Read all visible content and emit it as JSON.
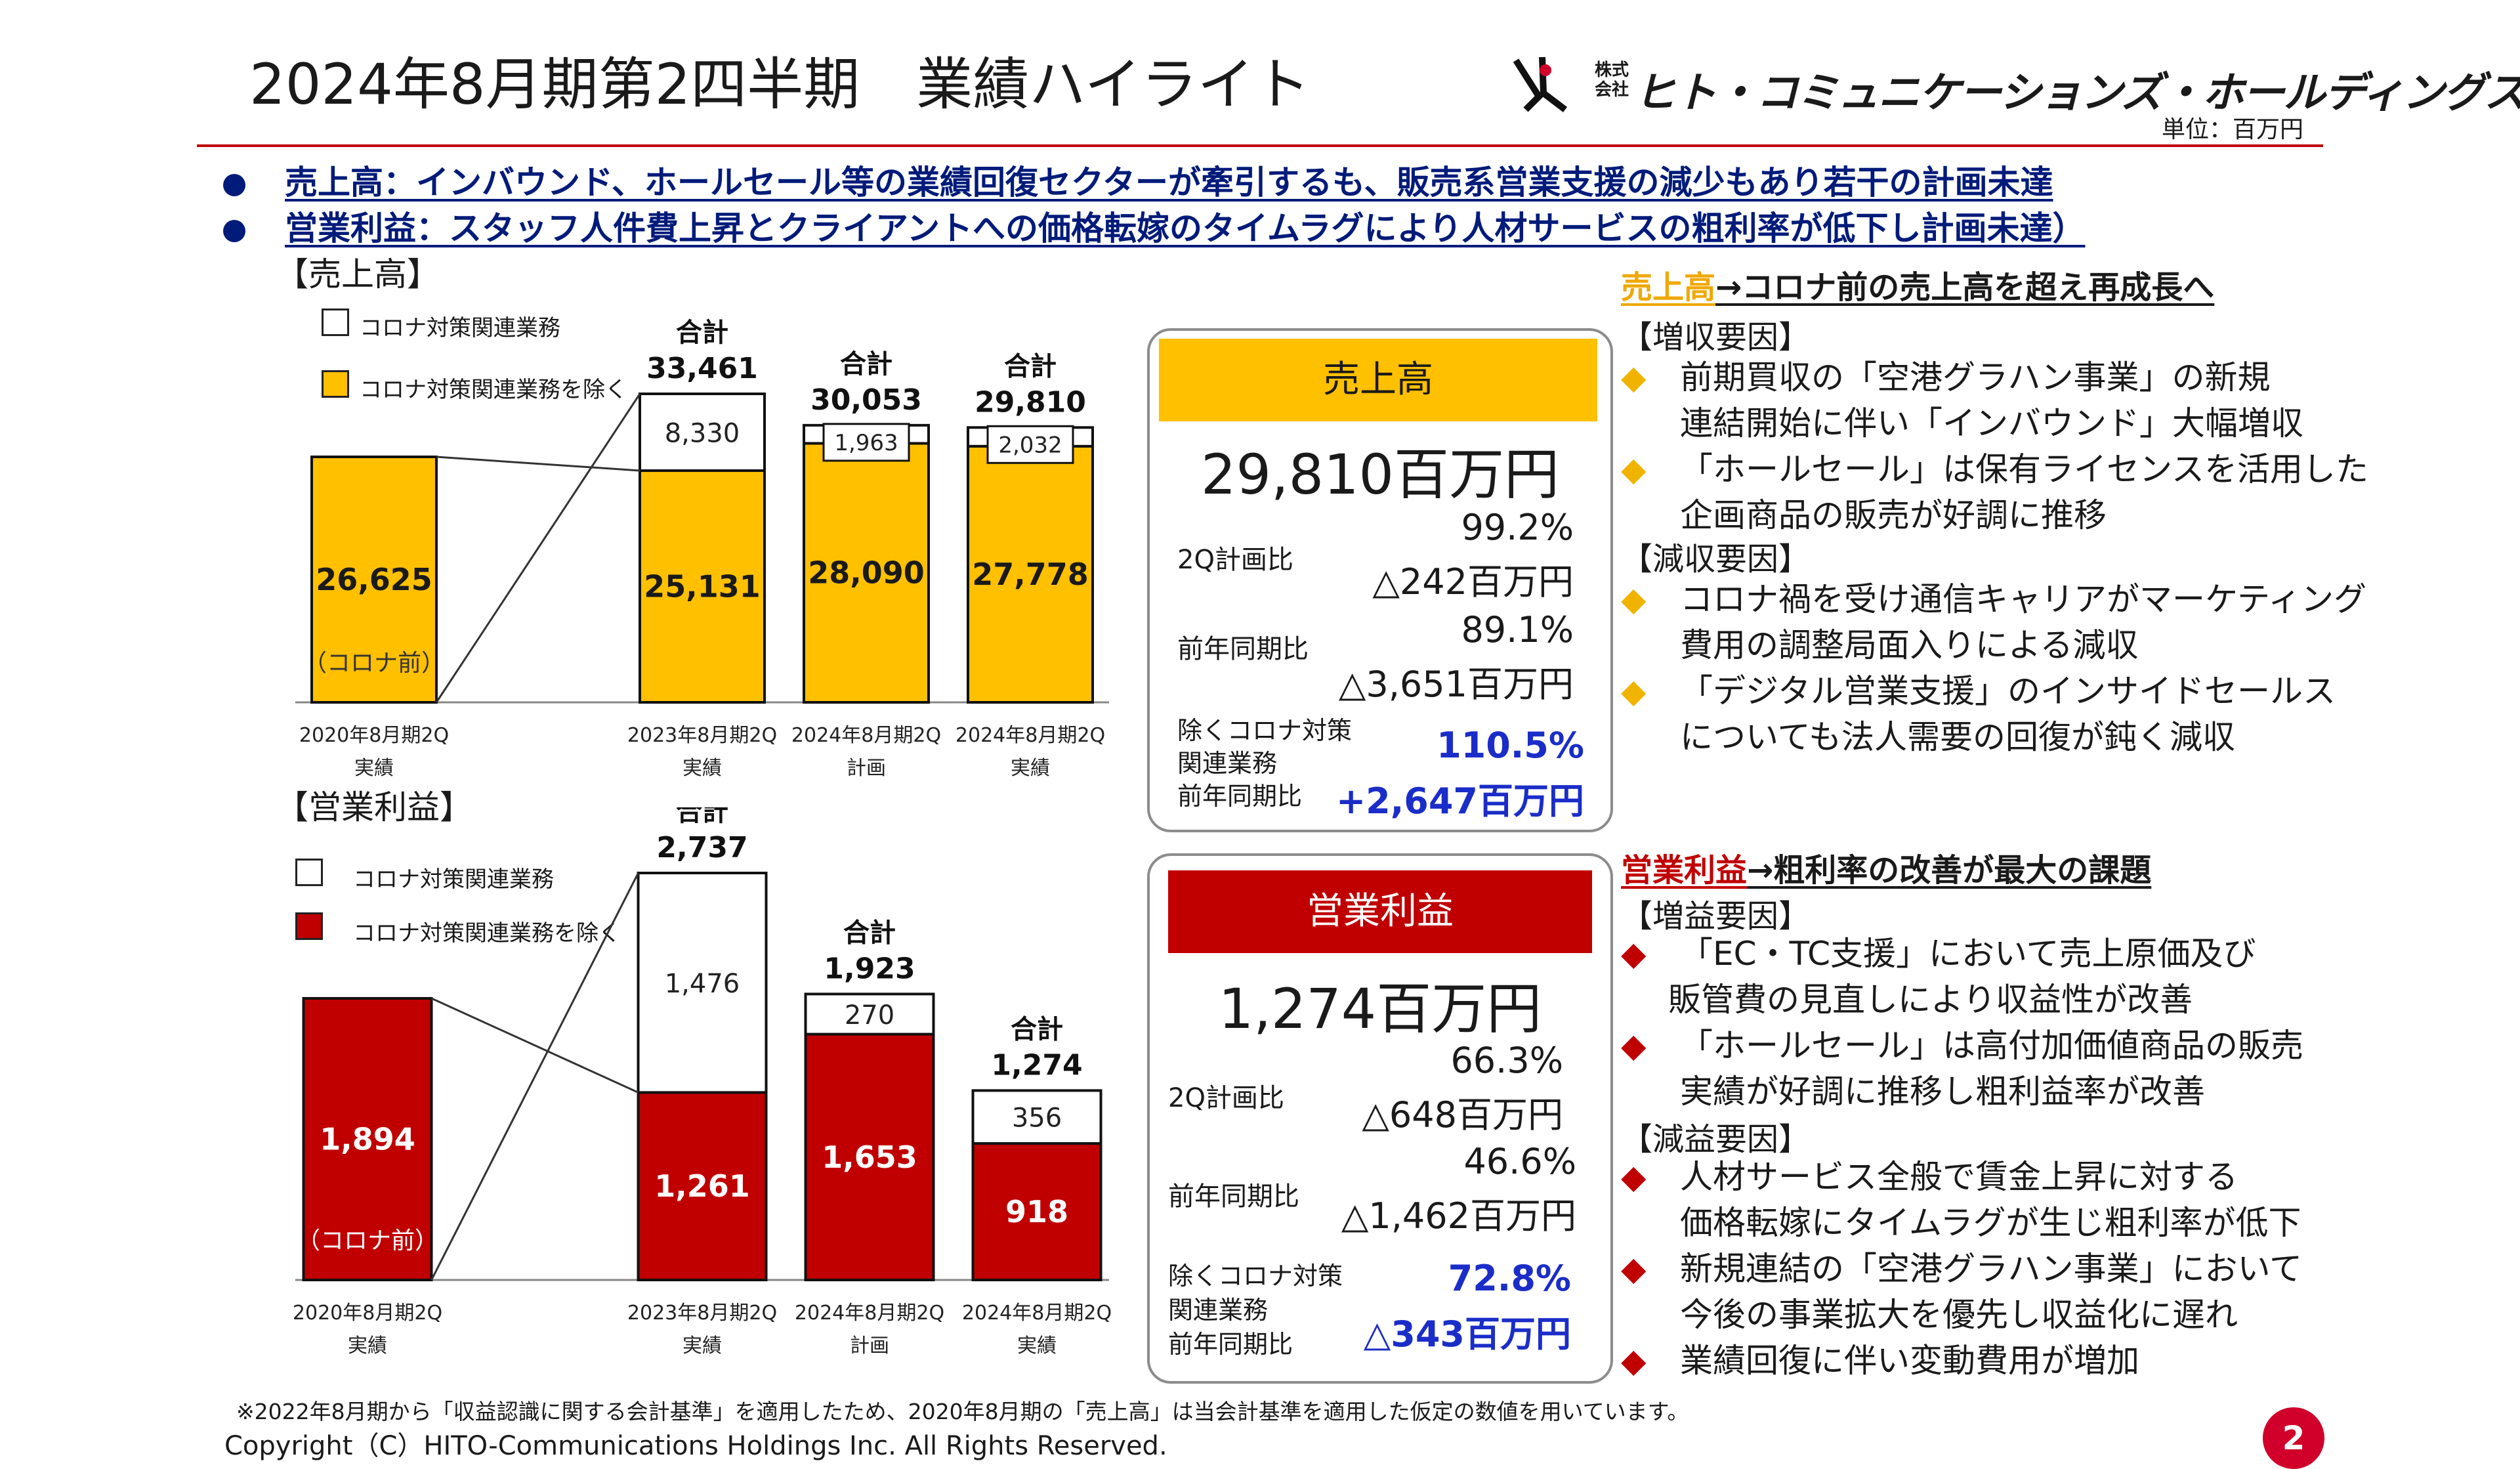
{
  "header": {
    "title": "2024年8月期第2四半期　業績ハイライト",
    "logo_small": "株式会社",
    "logo_name": "ヒト・コミュニケーションズ・ホールディングス",
    "unit": "単位：百万円"
  },
  "bullets": [
    "売上高：インバウンド、ホールセール等の業績回復セクターが牽引するも、販売系営業支援の減少もあり若干の計画未達",
    "営業利益：スタッフ人件費上昇とクライアントへの価格転嫁のタイムラグにより人材サービスの粗利率が低下し計画未達）"
  ],
  "chart_data": [
    {
      "type": "bar",
      "stacked": true,
      "title": "【売上高】",
      "legend": [
        "コロナ対策関連業務",
        "コロナ対策関連業務を除く"
      ],
      "categories": [
        [
          "2020年8月期2Q",
          "実績"
        ],
        [
          "2023年8月期2Q",
          "実績"
        ],
        [
          "2024年8月期2Q",
          "計画"
        ],
        [
          "2024年8月期2Q",
          "実績"
        ]
      ],
      "series": [
        {
          "name": "コロナ対策関連業務を除く",
          "color": "#ffc000",
          "values": [
            26625,
            25131,
            28090,
            27778
          ]
        },
        {
          "name": "コロナ対策関連業務",
          "color": "#ffffff",
          "values": [
            0,
            8330,
            1963,
            2032
          ]
        }
      ],
      "value_labels_base": [
        "26,625",
        "25,131",
        "28,090",
        "27,778"
      ],
      "value_labels_top": [
        "",
        "8,330",
        "1,963",
        "2,032"
      ],
      "totals_label": "合計",
      "totals": [
        "",
        "33,461",
        "30,053",
        "29,810"
      ],
      "pre_covid_note": "（コロナ前）",
      "ylim": [
        0,
        33461
      ]
    },
    {
      "type": "bar",
      "stacked": true,
      "title": "【営業利益】",
      "legend": [
        "コロナ対策関連業務",
        "コロナ対策関連業務を除く"
      ],
      "categories": [
        [
          "2020年8月期2Q",
          "実績"
        ],
        [
          "2023年8月期2Q",
          "実績"
        ],
        [
          "2024年8月期2Q",
          "計画"
        ],
        [
          "2024年8月期2Q",
          "実績"
        ]
      ],
      "series": [
        {
          "name": "コロナ対策関連業務を除く",
          "color": "#c00000",
          "values": [
            1894,
            1261,
            1653,
            918
          ]
        },
        {
          "name": "コロナ対策関連業務",
          "color": "#ffffff",
          "values": [
            0,
            1476,
            270,
            356
          ]
        }
      ],
      "value_labels_base": [
        "1,894",
        "1,261",
        "1,653",
        "918"
      ],
      "value_labels_top": [
        "",
        "1,476",
        "270",
        "356"
      ],
      "totals_label": "合計",
      "totals": [
        "",
        "2,737",
        "1,923",
        "1,274"
      ],
      "pre_covid_note": "（コロナ前）",
      "ylim": [
        0,
        2737
      ]
    }
  ],
  "kpi_sales": {
    "head": "売上高",
    "main": "29,810百万円",
    "row1_label": "2Q計画比",
    "row1_v1": "99.2%",
    "row1_v2": "△242百万円",
    "row2_label": "前年同期比",
    "row2_v1": "89.1%",
    "row2_v2": "△3,651百万円",
    "row3_label": [
      "除くコロナ対策",
      "関連業務",
      "前年同期比"
    ],
    "row3_v1": "110.5%",
    "row3_v2": "+2,647百万円",
    "head_color": "#ffc000"
  },
  "kpi_profit": {
    "head": "営業利益",
    "main": "1,274百万円",
    "row1_label": "2Q計画比",
    "row1_v1": "66.3%",
    "row1_v2": "△648百万円",
    "row2_label": "前年同期比",
    "row2_v1": "46.6%",
    "row2_v2": "△1,462百万円",
    "row3_label": [
      "除くコロナ対策",
      "関連業務",
      "前年同期比"
    ],
    "row3_v1": "72.8%",
    "row3_v2": "△343百万円",
    "head_color": "#c00000"
  },
  "right_sales": {
    "title_hl": "売上高",
    "title_rest": "→コロナ前の売上高を超え再成長へ",
    "inc_head": "【増収要因】",
    "inc_items": [
      [
        "前期買収の「空港グラハン事業」の新規",
        "連結開始に伴い「インバウンド」大幅増収"
      ],
      [
        "「ホールセール」は保有ライセンスを活用した",
        "企画商品の販売が好調に推移"
      ]
    ],
    "dec_head": "【減収要因】",
    "dec_items": [
      [
        "コロナ禍を受け通信キャリアがマーケティング",
        "費用の調整局面入りによる減収"
      ],
      [
        "「デジタル営業支援」のインサイドセールス",
        "についても法人需要の回復が鈍く減収"
      ]
    ],
    "marker": "◆",
    "marker_color": "#f0b400"
  },
  "right_profit": {
    "title_hl": "営業利益",
    "title_rest": "→粗利率の改善が最大の課題",
    "inc_head": "【増益要因】",
    "inc_items": [
      [
        "「EC・TC支援」において売上原価及び",
        "販管費の見直しにより収益性が改善"
      ],
      [
        "「ホールセール」は高付加価値商品の販売",
        "実績が好調に推移し粗利益率が改善"
      ]
    ],
    "dec_head": "【減益要因】",
    "dec_items": [
      [
        "人材サービス全般で賃金上昇に対する",
        "価格転嫁にタイムラグが生じ粗利率が低下"
      ],
      [
        "新規連結の「空港グラハン事業」において",
        "今後の事業拡大を優先し収益化に遅れ"
      ],
      [
        "業績回復に伴い変動費用が増加"
      ]
    ],
    "marker": "◆",
    "marker_color": "#c00000"
  },
  "footer": {
    "note": "※2022年8月期から「収益認識に関する会計基準」を適用したため、2020年8月期の「売上高」は当会計基準を適用した仮定の数値を用いています。",
    "copyright": "Copyright（C）HITO-Communications Holdings Inc. All Rights Reserved.",
    "page": "2"
  }
}
